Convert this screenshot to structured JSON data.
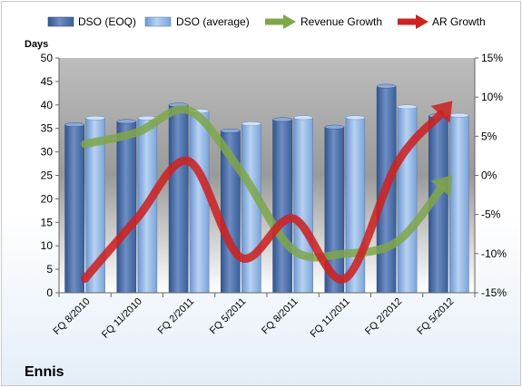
{
  "chart_data": {
    "type": "bar",
    "categories": [
      "FQ 8/2010",
      "FQ 11/2010",
      "FQ 2/2011",
      "FQ 5/2011",
      "FQ 8/2011",
      "FQ 11/2011",
      "FQ 2/2012",
      "FQ 5/2012"
    ],
    "series": [
      {
        "name": "DSO (EOQ)",
        "kind": "bar",
        "axis": "left",
        "values": [
          35.8,
          36.5,
          40.0,
          34.5,
          36.9,
          35.3,
          44.0,
          37.7
        ]
      },
      {
        "name": "DSO (average)",
        "kind": "bar",
        "axis": "left",
        "values": [
          37.2,
          37.2,
          38.7,
          36.0,
          37.3,
          37.3,
          39.6,
          37.8
        ]
      },
      {
        "name": "Revenue Growth",
        "kind": "arrow-line",
        "axis": "right",
        "values": [
          4.0,
          5.5,
          8.3,
          0.5,
          -9.5,
          -10.0,
          -8.5,
          -0.5
        ]
      },
      {
        "name": "AR Growth",
        "kind": "arrow-line",
        "axis": "right",
        "values": [
          -13.2,
          -5.5,
          1.8,
          -10.5,
          -5.5,
          -13.2,
          1.5,
          9.0
        ]
      }
    ],
    "ylabel": "Days",
    "ylim": [
      0,
      50
    ],
    "yticks": [
      0,
      5,
      10,
      15,
      20,
      25,
      30,
      35,
      40,
      45,
      50
    ],
    "y2lim": [
      -15,
      15
    ],
    "y2ticks": [
      "-15%",
      "-10%",
      "-5%",
      "0%",
      "5%",
      "10%",
      "15%"
    ],
    "legend_position": "top",
    "grid": false,
    "company_label": "Ennis",
    "colors": {
      "dso_eoq": "#4f6fa6",
      "dso_avg": "#8fb4e3",
      "revenue_growth": "#7fa64a",
      "ar_growth": "#cc2222"
    }
  }
}
